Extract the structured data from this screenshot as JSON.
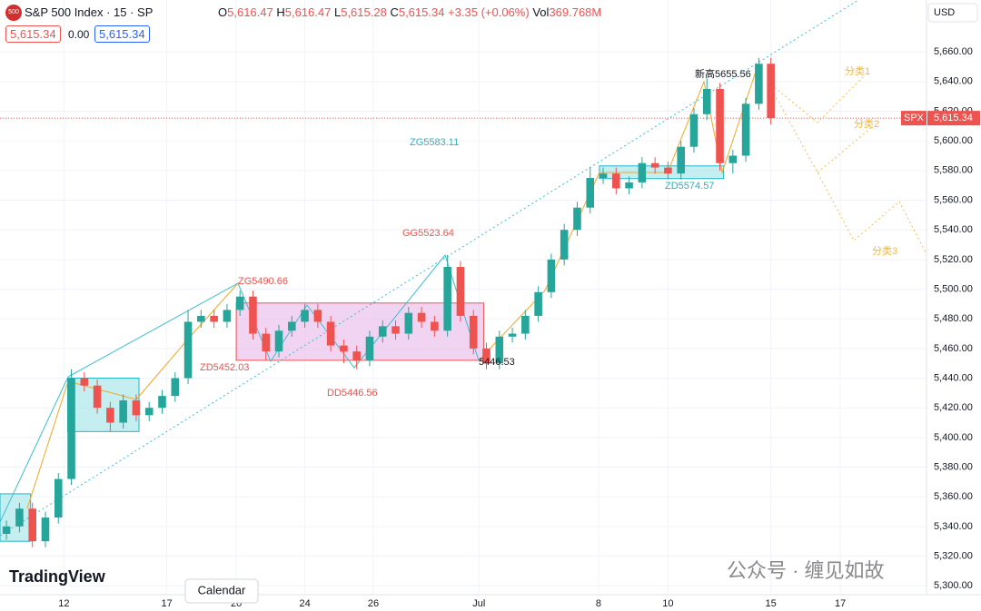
{
  "header": {
    "symbol": "S&P 500 Index · 15 · SP",
    "o_label": "O",
    "o": "5,616.47",
    "h_label": "H",
    "h": "5,616.47",
    "l_label": "L",
    "l": "5,615.28",
    "c_label": "C",
    "c": "5,615.34",
    "change": "+3.35 (+0.06%)",
    "vol_label": "Vol",
    "vol": "369.768M",
    "bid": "5,615.34",
    "spread": "0.00",
    "ask": "5,615.34",
    "logo": "500"
  },
  "currency": "USD",
  "brand": "TradingView",
  "watermark": "公众号 · 缠见如故",
  "calendar": "Calendar",
  "chart_data": {
    "type": "candlestick",
    "symbol_tag": "SPX",
    "last_price": 5615.34,
    "last_price_label": "5,615.34",
    "up_color": "#26a69a",
    "down_color": "#ef5350",
    "x": [
      0.7,
      2.1,
      3.5,
      4.9,
      6.3,
      7.7,
      9.1,
      10.5,
      11.9,
      13.3,
      14.7,
      16.1,
      17.5,
      18.9,
      20.3,
      21.7,
      23.1,
      24.5,
      25.9,
      27.3,
      28.7,
      30.1,
      31.5,
      32.9,
      34.3,
      35.7,
      37.1,
      38.5,
      39.9,
      41.3,
      42.7,
      44.1,
      45.5,
      46.9,
      48.3,
      49.7,
      51.1,
      52.5,
      53.9,
      55.3,
      56.7,
      58.1,
      59.5,
      60.9,
      62.3,
      63.7,
      65.1,
      66.5,
      67.9,
      69.3,
      70.7,
      72.1,
      73.5,
      74.9,
      76.3,
      77.7,
      79.1,
      80.5,
      81.9,
      83.2
    ],
    "open": [
      5335,
      5340,
      5352,
      5330,
      5346,
      5372,
      5440,
      5435,
      5420,
      5410,
      5425,
      5415,
      5420,
      5428,
      5440,
      5478,
      5482,
      5478,
      5486,
      5495,
      5470,
      5458,
      5472,
      5478,
      5486,
      5478,
      5462,
      5458,
      5452,
      5468,
      5475,
      5470,
      5484,
      5478,
      5472,
      5515,
      5482,
      5460,
      5450,
      5468,
      5470,
      5482,
      5498,
      5520,
      5540,
      5555,
      5575,
      5578,
      5568,
      5572,
      5585,
      5582,
      5578,
      5596,
      5618,
      5635,
      5585,
      5590,
      5625,
      5652
    ],
    "high": [
      5344,
      5356,
      5356,
      5350,
      5376,
      5446,
      5444,
      5439,
      5424,
      5429,
      5429,
      5424,
      5432,
      5444,
      5486,
      5486,
      5486,
      5490,
      5499,
      5499,
      5474,
      5476,
      5482,
      5490,
      5490,
      5482,
      5466,
      5462,
      5472,
      5479,
      5479,
      5488,
      5488,
      5482,
      5523,
      5519,
      5486,
      5464,
      5472,
      5474,
      5486,
      5502,
      5524,
      5544,
      5559,
      5582,
      5582,
      5582,
      5576,
      5589,
      5589,
      5586,
      5600,
      5622,
      5642,
      5639,
      5594,
      5629,
      5656,
      5656
    ],
    "low": [
      5331,
      5336,
      5326,
      5326,
      5342,
      5368,
      5431,
      5416,
      5404,
      5406,
      5411,
      5411,
      5416,
      5424,
      5436,
      5474,
      5474,
      5474,
      5482,
      5466,
      5452,
      5454,
      5468,
      5474,
      5474,
      5458,
      5450,
      5446,
      5448,
      5464,
      5466,
      5466,
      5474,
      5468,
      5468,
      5478,
      5456,
      5446,
      5446,
      5464,
      5466,
      5478,
      5494,
      5516,
      5536,
      5551,
      5571,
      5564,
      5564,
      5568,
      5578,
      5574,
      5574,
      5592,
      5614,
      5580,
      5578,
      5586,
      5621,
      5611
    ],
    "close": [
      5340,
      5352,
      5330,
      5346,
      5372,
      5440,
      5435,
      5420,
      5410,
      5425,
      5415,
      5420,
      5428,
      5440,
      5478,
      5482,
      5478,
      5486,
      5495,
      5470,
      5458,
      5472,
      5478,
      5486,
      5478,
      5462,
      5458,
      5452,
      5468,
      5475,
      5470,
      5484,
      5478,
      5472,
      5515,
      5482,
      5460,
      5450,
      5468,
      5470,
      5482,
      5498,
      5520,
      5540,
      5555,
      5575,
      5578,
      5568,
      5572,
      5585,
      5582,
      5578,
      5596,
      5618,
      5635,
      5585,
      5590,
      5625,
      5652,
      5615.34
    ],
    "zones": [
      {
        "x": [
          0,
          3.3
        ],
        "y": [
          5330,
          5362
        ],
        "color": "#9fe3e8"
      },
      {
        "x": [
          7.3,
          15
        ],
        "y": [
          5404,
          5440
        ],
        "color": "#9fe3e8"
      },
      {
        "x": [
          25.5,
          52.2
        ],
        "y": [
          5452.03,
          5490.66
        ],
        "color": "#e7b8ea"
      },
      {
        "x": [
          64.7,
          78.1
        ],
        "y": [
          5574.57,
          5583.11
        ],
        "color": "#9fe3e8"
      }
    ],
    "annotations": [
      "新高5655.56",
      "ZG5583.11",
      "ZD5574.57",
      "GG5523.64",
      "ZG5490.66",
      "ZD5452.03",
      "DD5446.56",
      "5446.53",
      "分类1",
      "分类2",
      "分类3"
    ],
    "xlim": [
      0,
      100
    ],
    "xticks": [
      {
        "value": 6.9,
        "label": "12"
      },
      {
        "value": 18,
        "label": "17"
      },
      {
        "value": 25.5,
        "label": "20"
      },
      {
        "value": 32.9,
        "label": "24"
      },
      {
        "value": 40.3,
        "label": "26"
      },
      {
        "value": 51.7,
        "label": "Jul"
      },
      {
        "value": 64.6,
        "label": "8"
      },
      {
        "value": 72.1,
        "label": "10"
      },
      {
        "value": 83.2,
        "label": "15"
      },
      {
        "value": 90.7,
        "label": "17"
      }
    ],
    "ylim": [
      5294,
      5695
    ],
    "yticks": [
      {
        "value": 5300,
        "label": "5,300.00"
      },
      {
        "value": 5320,
        "label": "5,320.00"
      },
      {
        "value": 5340,
        "label": "5,340.00"
      },
      {
        "value": 5360,
        "label": "5,360.00"
      },
      {
        "value": 5380,
        "label": "5,380.00"
      },
      {
        "value": 5400,
        "label": "5,400.00"
      },
      {
        "value": 5420,
        "label": "5,420.00"
      },
      {
        "value": 5440,
        "label": "5,440.00"
      },
      {
        "value": 5460,
        "label": "5,460.00"
      },
      {
        "value": 5480,
        "label": "5,480.00"
      },
      {
        "value": 5500,
        "label": "5,500.00"
      },
      {
        "value": 5520,
        "label": "5,520.00"
      },
      {
        "value": 5540,
        "label": "5,540.00"
      },
      {
        "value": 5560,
        "label": "5,560.00"
      },
      {
        "value": 5580,
        "label": "5,580.00"
      },
      {
        "value": 5600,
        "label": "5,600.00"
      },
      {
        "value": 5620,
        "label": "5,620.00"
      },
      {
        "value": 5640,
        "label": "5,640.00"
      },
      {
        "value": 5660,
        "label": "5,660.00"
      }
    ]
  }
}
